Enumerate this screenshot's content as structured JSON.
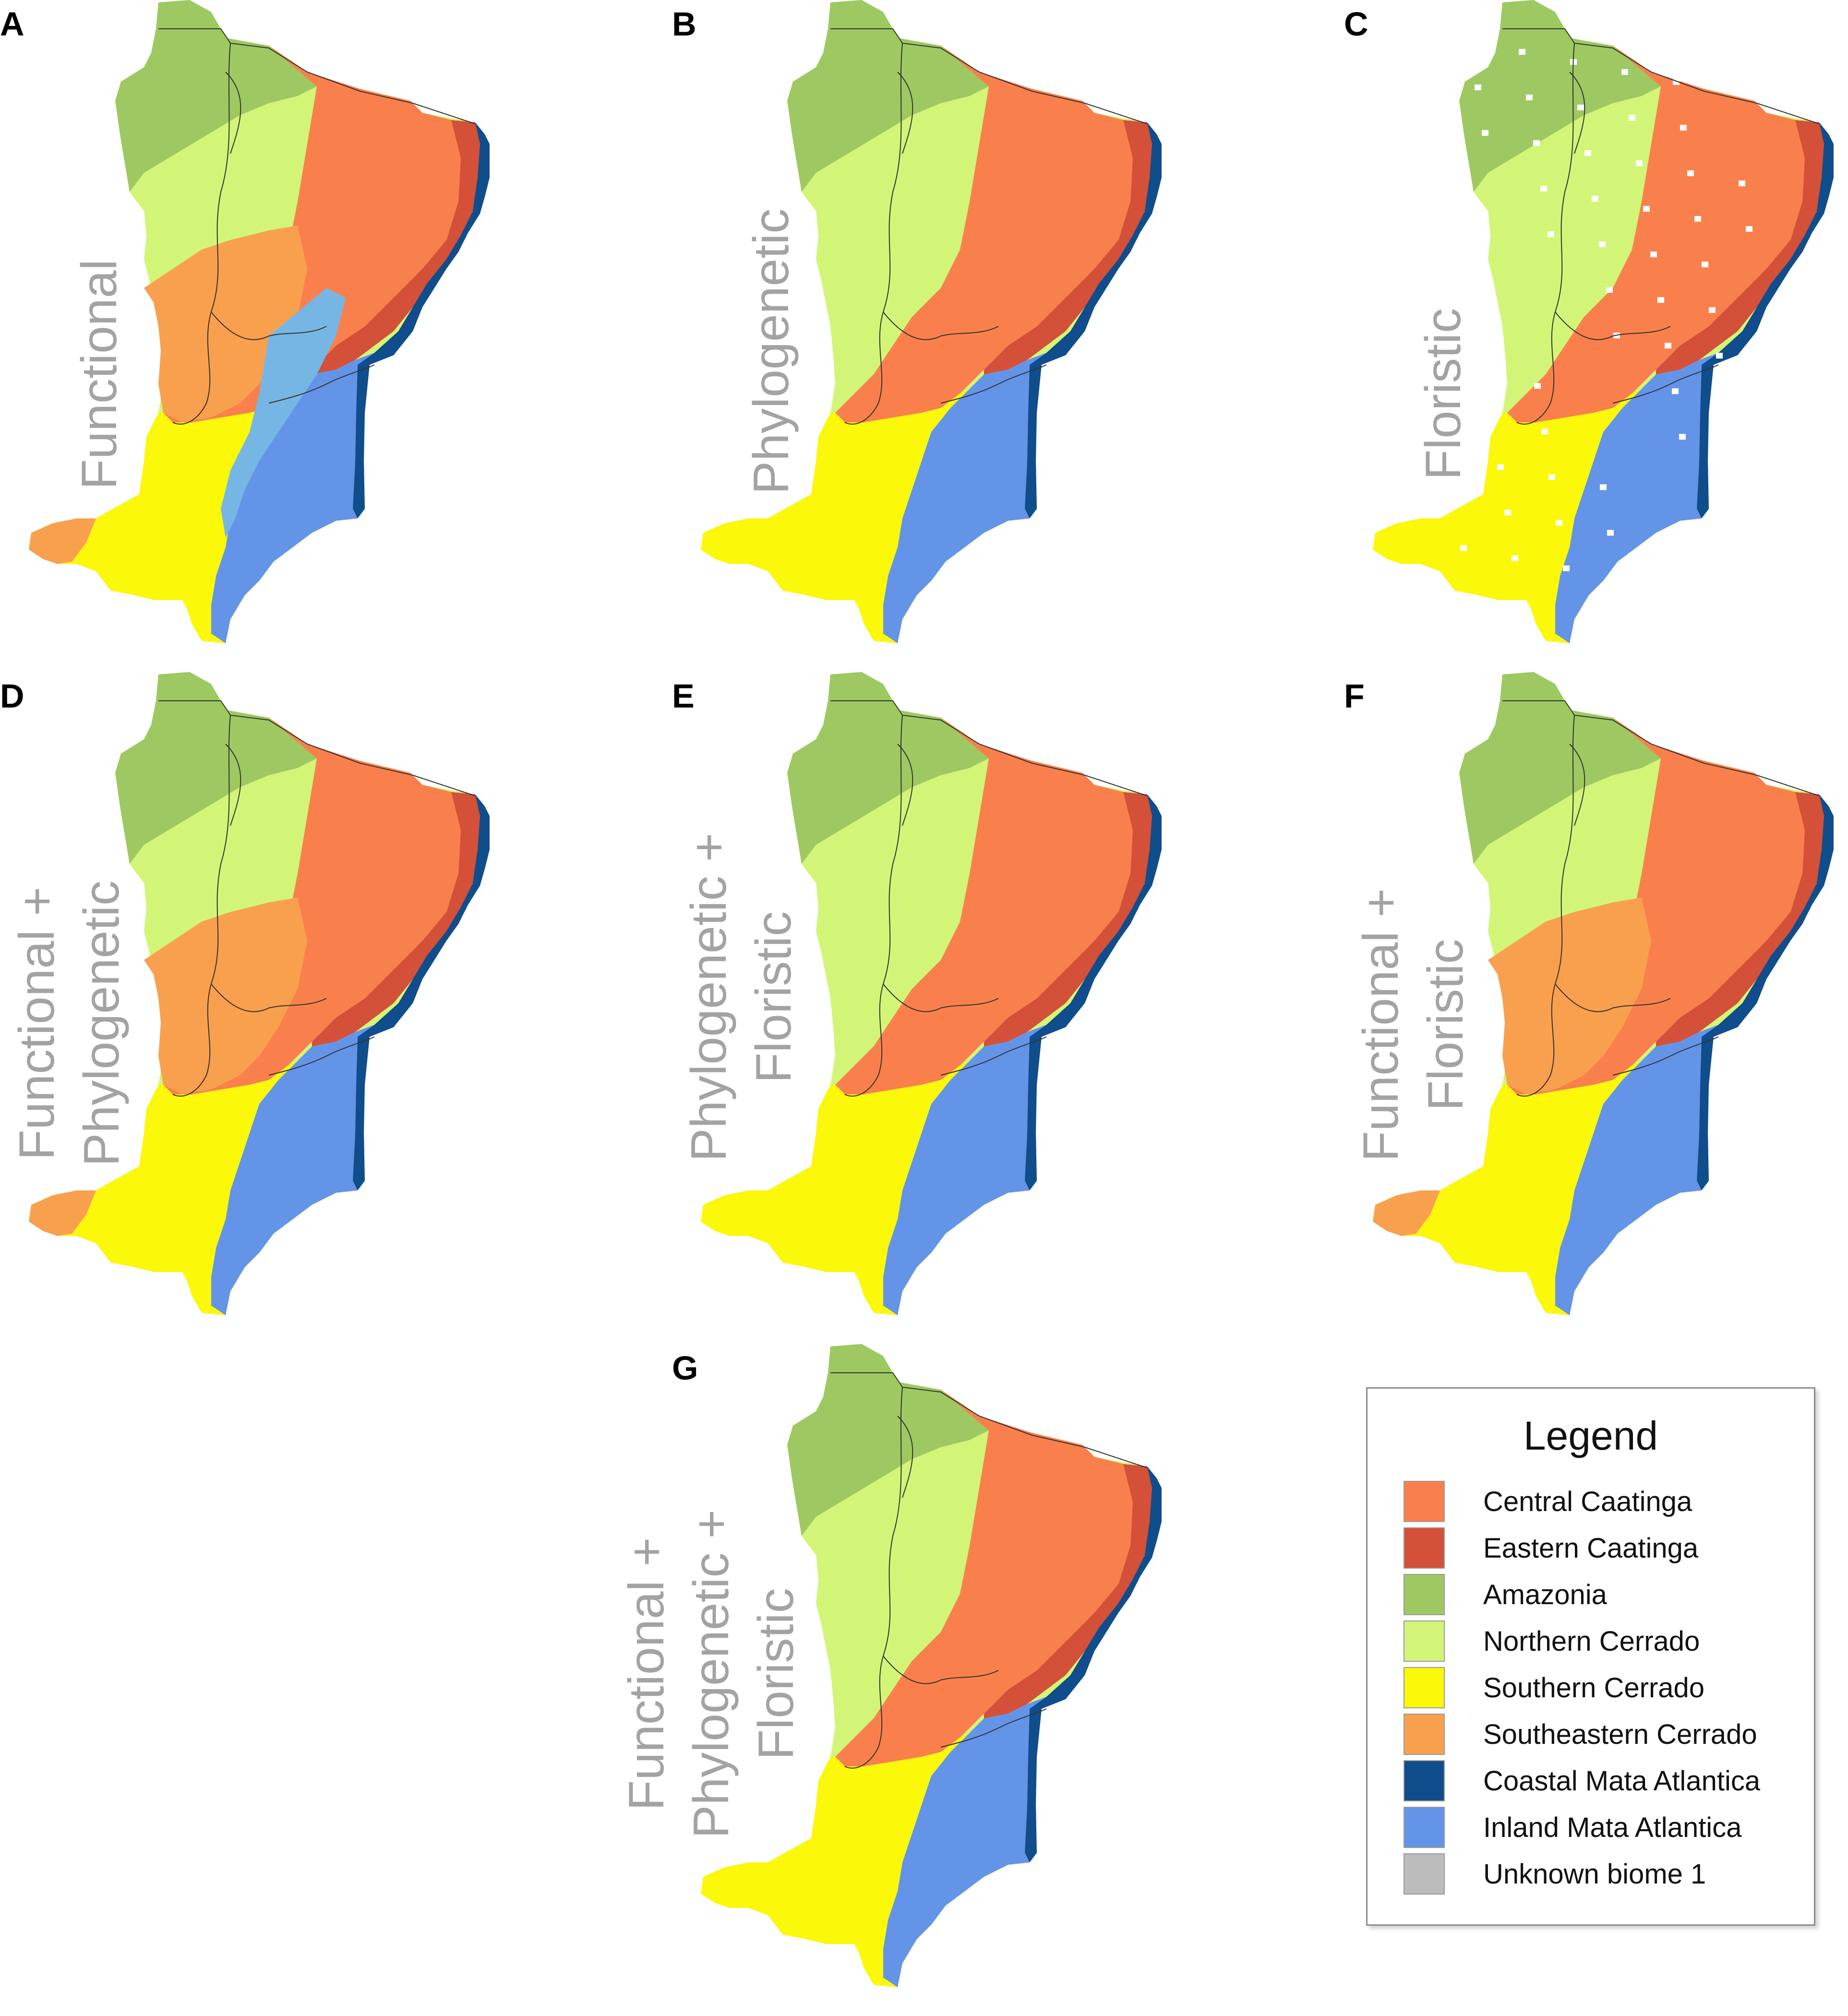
{
  "colors": {
    "central_caatinga": "#f9804c",
    "eastern_caatinga": "#d45038",
    "amazonia": "#9ec962",
    "northern_cerrado": "#d2f578",
    "southern_cerrado": "#fbf80a",
    "southeastern_cerrado": "#f9a04e",
    "coastal_mata_atlantica": "#0f4d8c",
    "inland_mata_atlantica": "#6494e8",
    "light_blue": "#76b6e4",
    "unknown_biome_1": "#bcbcbc"
  },
  "panels": [
    {
      "letter": "A",
      "lines": [
        "Functional"
      ]
    },
    {
      "letter": "B",
      "lines": [
        "Phylogenetic"
      ]
    },
    {
      "letter": "C",
      "lines": [
        "Floristic"
      ]
    },
    {
      "letter": "D",
      "lines": [
        "Functional +",
        "Phylogenetic"
      ]
    },
    {
      "letter": "E",
      "lines": [
        "Phylogenetic +",
        "Floristic"
      ]
    },
    {
      "letter": "F",
      "lines": [
        "Functional +",
        "Floristic"
      ]
    },
    {
      "letter": "G",
      "lines": [
        "Functional +",
        "Phylogenetic +",
        "Floristic"
      ]
    }
  ],
  "legend": {
    "title": "Legend",
    "items": [
      {
        "label": "Central Caatinga",
        "color": "#f9804c"
      },
      {
        "label": "Eastern Caatinga",
        "color": "#d45038"
      },
      {
        "label": "Amazonia",
        "color": "#9ec962"
      },
      {
        "label": "Northern Cerrado",
        "color": "#d2f578"
      },
      {
        "label": "Southern Cerrado",
        "color": "#fbf80a"
      },
      {
        "label": "Southeastern Cerrado",
        "color": "#f9a04e"
      },
      {
        "label": "Coastal Mata Atlantica",
        "color": "#0f4d8c"
      },
      {
        "label": "Inland Mata Atlantica",
        "color": "#6494e8"
      },
      {
        "label": "Unknown biome 1",
        "color": "#bcbcbc"
      }
    ]
  }
}
